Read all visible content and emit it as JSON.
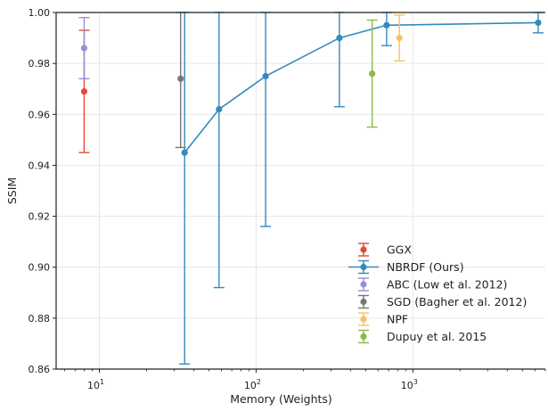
{
  "chart_data": {
    "type": "scatter",
    "xlabel": "Memory (Weights)",
    "ylabel": "SSIM",
    "xscale": "log",
    "xlim": [
      5.3,
      7000
    ],
    "ylim": [
      0.86,
      1.0
    ],
    "grid": true,
    "legend_position": "bottom-right",
    "yticks": [
      0.86,
      0.88,
      0.9,
      0.92,
      0.94,
      0.96,
      0.98,
      1.0
    ],
    "ytick_labels": [
      "0.86",
      "0.88",
      "0.90",
      "0.92",
      "0.94",
      "0.96",
      "0.98",
      "1.00"
    ],
    "xticks": [
      10,
      100,
      1000
    ],
    "xtick_labels": [
      {
        "base": "10",
        "exp": "1"
      },
      {
        "base": "10",
        "exp": "2"
      },
      {
        "base": "10",
        "exp": "3"
      }
    ],
    "series": [
      {
        "name": "GGX",
        "color": "#e24a33",
        "line": false,
        "points": [
          {
            "x": 8,
            "y": 0.969,
            "ylow": 0.945,
            "yhigh": 0.993
          }
        ]
      },
      {
        "name": "NBRDF (Ours)",
        "color": "#348abd",
        "line": true,
        "points": [
          {
            "x": 35,
            "y": 0.945,
            "ylow": 0.862,
            "yhigh": 1.0
          },
          {
            "x": 58,
            "y": 0.962,
            "ylow": 0.892,
            "yhigh": 1.0
          },
          {
            "x": 115,
            "y": 0.975,
            "ylow": 0.916,
            "yhigh": 1.0
          },
          {
            "x": 340,
            "y": 0.99,
            "ylow": 0.963,
            "yhigh": 1.0
          },
          {
            "x": 680,
            "y": 0.995,
            "ylow": 0.987,
            "yhigh": 1.0
          },
          {
            "x": 6300,
            "y": 0.996,
            "ylow": 0.992,
            "yhigh": 1.0
          }
        ]
      },
      {
        "name": "ABC (Low et al. 2012)",
        "color": "#988ed5",
        "line": false,
        "points": [
          {
            "x": 8,
            "y": 0.986,
            "ylow": 0.974,
            "yhigh": 0.998
          }
        ]
      },
      {
        "name": "SGD (Bagher et al. 2012)",
        "color": "#777777",
        "line": false,
        "points": [
          {
            "x": 33,
            "y": 0.974,
            "ylow": 0.947,
            "yhigh": 1.0
          }
        ]
      },
      {
        "name": "NPF",
        "color": "#fbc15e",
        "line": false,
        "points": [
          {
            "x": 820,
            "y": 0.99,
            "ylow": 0.981,
            "yhigh": 0.999
          }
        ]
      },
      {
        "name": "Dupuy et al. 2015",
        "color": "#8eba42",
        "line": false,
        "points": [
          {
            "x": 550,
            "y": 0.976,
            "ylow": 0.955,
            "yhigh": 0.997
          }
        ]
      }
    ]
  }
}
